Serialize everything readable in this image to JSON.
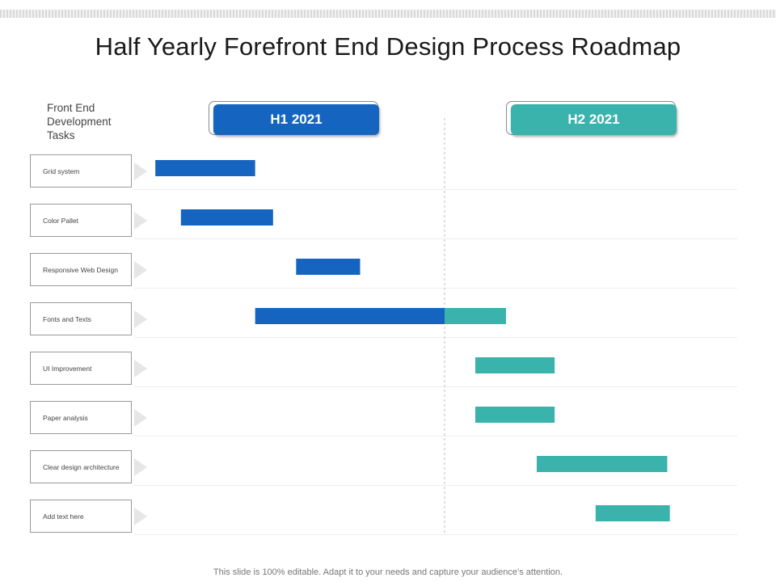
{
  "title": "Half Yearly Forefront End Design Process Roadmap",
  "footer": "This slide is 100% editable. Adapt it to your needs and capture your audience’s attention.",
  "colors": {
    "h1": "#1565c0",
    "h2": "#3ab3ac"
  },
  "chart_data": {
    "type": "gantt",
    "tasks_heading": "Front End Development Tasks",
    "periods": [
      {
        "label": "H1 2021",
        "start": 0,
        "end": 6
      },
      {
        "label": "H2 2021",
        "start": 6,
        "end": 12
      }
    ],
    "xlim": [
      0,
      12
    ],
    "unit": "months from Jan 2021",
    "tasks": [
      {
        "name": "Grid system",
        "start": 0.35,
        "end": 2.3
      },
      {
        "name": "Color Pallet",
        "start": 0.85,
        "end": 2.65
      },
      {
        "name": "Responsive Web Design",
        "start": 3.1,
        "end": 4.35
      },
      {
        "name": "Fonts and Texts",
        "start": 2.3,
        "end": 7.2
      },
      {
        "name": "UI Improvement",
        "start": 6.6,
        "end": 8.15
      },
      {
        "name": "Paper analysis",
        "start": 6.6,
        "end": 8.15
      },
      {
        "name": "Clear design architecture",
        "start": 7.8,
        "end": 10.35
      },
      {
        "name": "Add text here",
        "start": 8.95,
        "end": 10.4
      }
    ]
  }
}
